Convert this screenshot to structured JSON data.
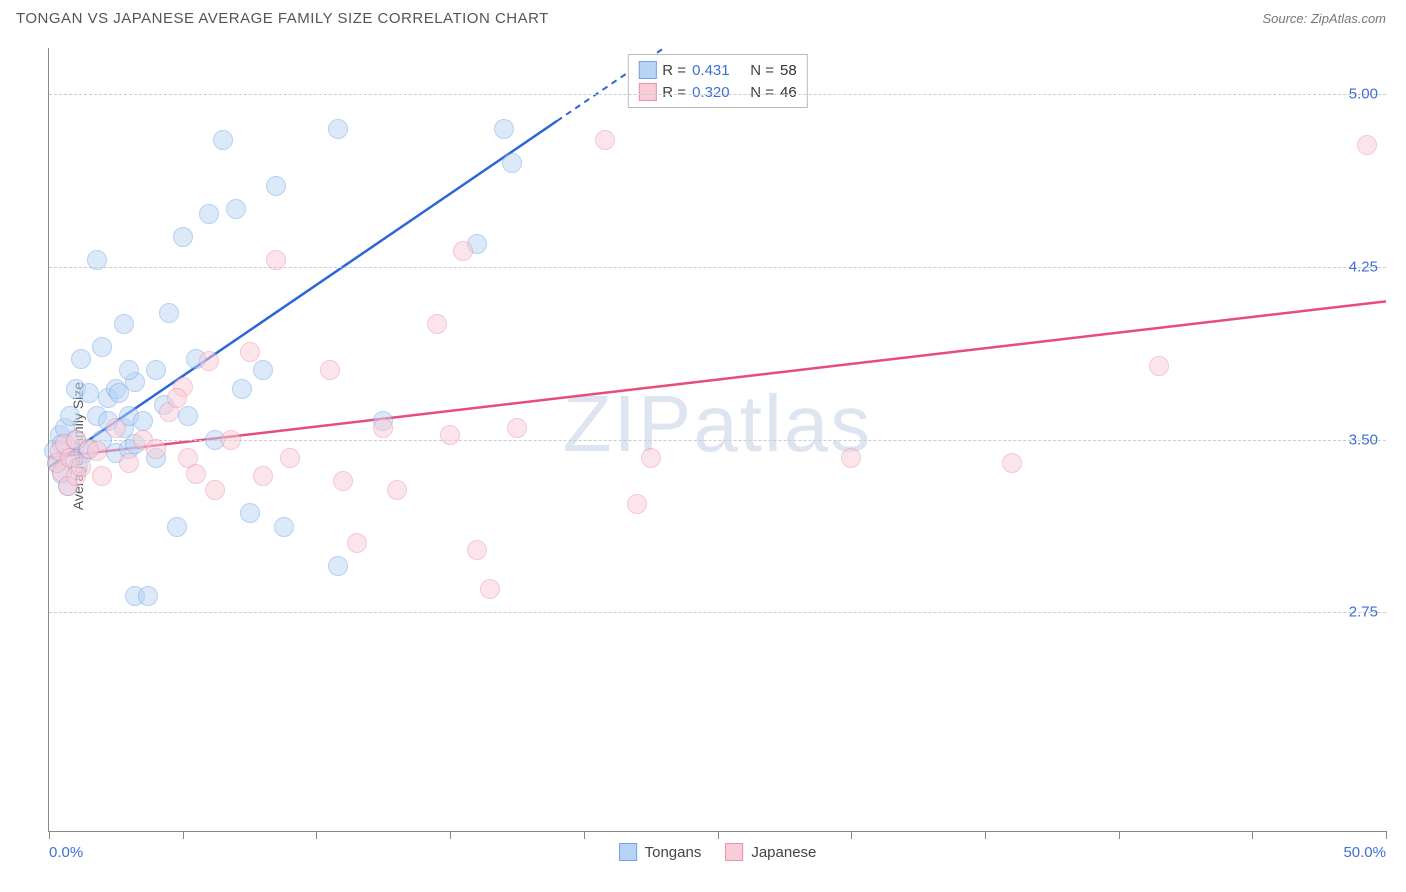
{
  "header": {
    "title": "TONGAN VS JAPANESE AVERAGE FAMILY SIZE CORRELATION CHART",
    "source": "Source: ZipAtlas.com"
  },
  "watermark": "ZIPatlas",
  "chart": {
    "type": "scatter",
    "ylabel": "Average Family Size",
    "xlim": [
      0,
      50
    ],
    "ylim": [
      1.8,
      5.2
    ],
    "xticks": [
      0,
      5,
      10,
      15,
      20,
      25,
      30,
      35,
      40,
      45,
      50
    ],
    "xaxis_labels": [
      {
        "value": "0.0%",
        "pos": 0
      },
      {
        "value": "50.0%",
        "pos": 50
      }
    ],
    "ygrid": [
      2.75,
      3.5,
      4.25,
      5.0
    ],
    "ytick_labels": [
      "2.75",
      "3.50",
      "4.25",
      "5.00"
    ],
    "background_color": "#ffffff",
    "grid_color": "#cccccc",
    "axis_color": "#888888",
    "label_color": "#3d6fd6",
    "marker_radius": 10,
    "marker_opacity": 0.5,
    "series": [
      {
        "name": "Tongans",
        "fill": "#b8d4f5",
        "stroke": "#6fa4e8",
        "line_color": "#2d66d8",
        "R": "0.431",
        "N": "58",
        "trend": {
          "x1": 0,
          "y1": 3.38,
          "x2": 23,
          "y2": 5.2,
          "dash_from_x": 19
        },
        "points": [
          [
            0.2,
            3.45
          ],
          [
            0.3,
            3.4
          ],
          [
            0.4,
            3.52
          ],
          [
            0.5,
            3.35
          ],
          [
            0.5,
            3.48
          ],
          [
            0.6,
            3.55
          ],
          [
            0.7,
            3.3
          ],
          [
            0.8,
            3.6
          ],
          [
            0.9,
            3.42
          ],
          [
            1.0,
            3.72
          ],
          [
            1.0,
            3.5
          ],
          [
            1.1,
            3.38
          ],
          [
            1.2,
            3.85
          ],
          [
            1.3,
            3.44
          ],
          [
            1.5,
            3.7
          ],
          [
            1.5,
            3.46
          ],
          [
            1.8,
            3.6
          ],
          [
            1.8,
            4.28
          ],
          [
            2.0,
            3.9
          ],
          [
            2.0,
            3.5
          ],
          [
            2.2,
            3.68
          ],
          [
            2.5,
            3.72
          ],
          [
            2.5,
            3.44
          ],
          [
            2.6,
            3.7
          ],
          [
            2.8,
            3.55
          ],
          [
            2.8,
            4.0
          ],
          [
            3.0,
            3.46
          ],
          [
            3.0,
            3.6
          ],
          [
            3.2,
            3.75
          ],
          [
            3.2,
            3.48
          ],
          [
            3.2,
            2.82
          ],
          [
            3.5,
            3.58
          ],
          [
            3.7,
            2.82
          ],
          [
            4.0,
            3.8
          ],
          [
            4.0,
            3.42
          ],
          [
            4.5,
            4.05
          ],
          [
            4.8,
            3.12
          ],
          [
            5.0,
            4.38
          ],
          [
            5.2,
            3.6
          ],
          [
            5.5,
            3.85
          ],
          [
            6.0,
            4.48
          ],
          [
            6.2,
            3.5
          ],
          [
            6.5,
            4.8
          ],
          [
            7.0,
            4.5
          ],
          [
            7.2,
            3.72
          ],
          [
            7.5,
            3.18
          ],
          [
            8.0,
            3.8
          ],
          [
            8.5,
            4.6
          ],
          [
            8.8,
            3.12
          ],
          [
            10.8,
            4.85
          ],
          [
            10.8,
            2.95
          ],
          [
            12.5,
            3.58
          ],
          [
            16.0,
            4.35
          ],
          [
            17.0,
            4.85
          ],
          [
            17.3,
            4.7
          ],
          [
            2.2,
            3.58
          ],
          [
            4.3,
            3.65
          ],
          [
            3.0,
            3.8
          ]
        ]
      },
      {
        "name": "Japanese",
        "fill": "#f9cdd8",
        "stroke": "#ed8fa8",
        "line_color": "#e84c7a",
        "R": "0.320",
        "N": "46",
        "trend": {
          "x1": 0,
          "y1": 3.42,
          "x2": 50,
          "y2": 4.1,
          "dash_from_x": 999
        },
        "points": [
          [
            0.3,
            3.4
          ],
          [
            0.4,
            3.45
          ],
          [
            0.5,
            3.36
          ],
          [
            0.6,
            3.48
          ],
          [
            0.7,
            3.3
          ],
          [
            0.8,
            3.42
          ],
          [
            1.0,
            3.34
          ],
          [
            1.0,
            3.5
          ],
          [
            1.2,
            3.38
          ],
          [
            1.5,
            3.46
          ],
          [
            1.8,
            3.45
          ],
          [
            2.0,
            3.34
          ],
          [
            2.5,
            3.55
          ],
          [
            3.0,
            3.4
          ],
          [
            3.5,
            3.5
          ],
          [
            4.0,
            3.46
          ],
          [
            4.5,
            3.62
          ],
          [
            5.0,
            3.73
          ],
          [
            5.2,
            3.42
          ],
          [
            5.5,
            3.35
          ],
          [
            6.0,
            3.84
          ],
          [
            6.2,
            3.28
          ],
          [
            6.8,
            3.5
          ],
          [
            7.5,
            3.88
          ],
          [
            8.0,
            3.34
          ],
          [
            8.5,
            4.28
          ],
          [
            9.0,
            3.42
          ],
          [
            10.5,
            3.8
          ],
          [
            11.0,
            3.32
          ],
          [
            11.5,
            3.05
          ],
          [
            12.5,
            3.55
          ],
          [
            13.0,
            3.28
          ],
          [
            14.5,
            4.0
          ],
          [
            15.0,
            3.52
          ],
          [
            15.5,
            4.32
          ],
          [
            16.0,
            3.02
          ],
          [
            16.5,
            2.85
          ],
          [
            17.5,
            3.55
          ],
          [
            20.8,
            4.8
          ],
          [
            22.0,
            3.22
          ],
          [
            22.5,
            3.42
          ],
          [
            30.0,
            3.42
          ],
          [
            36.0,
            3.4
          ],
          [
            41.5,
            3.82
          ],
          [
            49.3,
            4.78
          ],
          [
            4.8,
            3.68
          ]
        ]
      }
    ],
    "legend_top": {
      "rows": [
        {
          "swatch_fill": "#b8d4f5",
          "swatch_stroke": "#6fa4e8",
          "r_label": "R =",
          "r_value": "0.431",
          "n_label": "N =",
          "n_value": "58"
        },
        {
          "swatch_fill": "#f9cdd8",
          "swatch_stroke": "#ed8fa8",
          "r_label": "R =",
          "r_value": "0.320",
          "n_label": "N =",
          "n_value": "46"
        }
      ]
    },
    "legend_bottom": [
      {
        "swatch_fill": "#b8d4f5",
        "swatch_stroke": "#6fa4e8",
        "label": "Tongans"
      },
      {
        "swatch_fill": "#f9cdd8",
        "swatch_stroke": "#ed8fa8",
        "label": "Japanese"
      }
    ]
  }
}
